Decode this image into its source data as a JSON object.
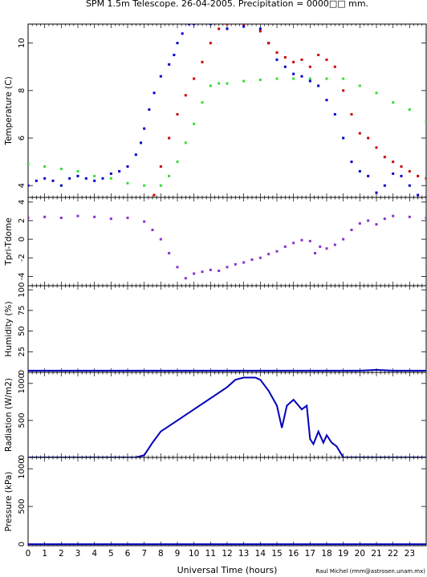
{
  "title": "SPM 1.5m Telescope. 26-04-2005. Precipitation = 0000□□ mm.",
  "credit": "Raul Michel (rmm@astrosen.unam.mx)",
  "xlabel": "Universal Time (hours)",
  "x_ticks": [
    0,
    1,
    2,
    3,
    4,
    5,
    6,
    7,
    8,
    9,
    10,
    11,
    12,
    13,
    14,
    15,
    16,
    17,
    18,
    19,
    20,
    21,
    22,
    23
  ],
  "chart_data": [
    {
      "type": "scatter",
      "ylabel": "Temperature (C)",
      "xlim": [
        0,
        24
      ],
      "ylim": [
        3.5,
        10.8
      ],
      "y_ticks": [
        4,
        6,
        8,
        10
      ],
      "series": [
        {
          "color": "#0000cc",
          "points": [
            [
              0,
              4.0
            ],
            [
              0.5,
              4.2
            ],
            [
              1,
              4.3
            ],
            [
              1.5,
              4.2
            ],
            [
              2,
              4.0
            ],
            [
              2.5,
              4.3
            ],
            [
              3,
              4.4
            ],
            [
              3.5,
              4.3
            ],
            [
              4,
              4.2
            ],
            [
              4.5,
              4.3
            ],
            [
              5,
              4.5
            ],
            [
              5.5,
              4.6
            ],
            [
              6,
              4.8
            ],
            [
              6.5,
              5.3
            ],
            [
              6.8,
              5.8
            ],
            [
              7.0,
              6.4
            ],
            [
              7.3,
              7.2
            ],
            [
              7.6,
              7.9
            ],
            [
              8.0,
              8.6
            ],
            [
              8.5,
              9.1
            ],
            [
              8.8,
              9.5
            ],
            [
              9.0,
              10.0
            ],
            [
              9.3,
              10.4
            ],
            [
              9.7,
              10.8
            ],
            [
              10,
              10.8
            ],
            [
              11,
              10.8
            ],
            [
              12,
              10.6
            ],
            [
              13,
              10.7
            ],
            [
              14,
              10.6
            ],
            [
              14.5,
              10.0
            ],
            [
              15,
              9.3
            ],
            [
              15.5,
              9.0
            ],
            [
              16,
              8.7
            ],
            [
              16.5,
              8.6
            ],
            [
              17,
              8.4
            ],
            [
              17.5,
              8.2
            ],
            [
              18,
              7.6
            ],
            [
              18.5,
              7.0
            ],
            [
              19,
              6.0
            ],
            [
              19.5,
              5.0
            ],
            [
              20,
              4.6
            ],
            [
              20.5,
              4.4
            ],
            [
              21,
              3.7
            ],
            [
              21.5,
              4.0
            ],
            [
              22,
              4.5
            ],
            [
              22.5,
              4.4
            ],
            [
              23,
              4.0
            ],
            [
              23.5,
              3.6
            ],
            [
              24,
              3.5
            ]
          ]
        },
        {
          "color": "#cc0000",
          "points": [
            [
              7.6,
              3.6
            ],
            [
              8.0,
              4.8
            ],
            [
              8.5,
              6.0
            ],
            [
              9,
              7.0
            ],
            [
              9.5,
              7.8
            ],
            [
              10,
              8.5
            ],
            [
              10.5,
              9.2
            ],
            [
              11,
              10.0
            ],
            [
              11.5,
              10.6
            ],
            [
              12,
              10.8
            ],
            [
              13,
              10.8
            ],
            [
              14,
              10.5
            ],
            [
              14.5,
              10.0
            ],
            [
              15,
              9.6
            ],
            [
              15.5,
              9.4
            ],
            [
              16,
              9.2
            ],
            [
              16.5,
              9.3
            ],
            [
              17,
              9.0
            ],
            [
              17.5,
              9.5
            ],
            [
              18,
              9.3
            ],
            [
              18.5,
              9.0
            ],
            [
              19,
              8.0
            ],
            [
              19.5,
              7.0
            ],
            [
              20,
              6.2
            ],
            [
              20.5,
              6.0
            ],
            [
              21,
              5.6
            ],
            [
              21.5,
              5.2
            ],
            [
              22,
              5.0
            ],
            [
              22.5,
              4.8
            ],
            [
              23,
              4.6
            ],
            [
              23.5,
              4.4
            ],
            [
              24,
              4.3
            ]
          ]
        },
        {
          "color": "#33dd33",
          "points": [
            [
              0,
              4.9
            ],
            [
              1,
              4.8
            ],
            [
              2,
              4.7
            ],
            [
              3,
              4.6
            ],
            [
              4,
              4.4
            ],
            [
              5,
              4.3
            ],
            [
              6,
              4.1
            ],
            [
              7,
              4.0
            ],
            [
              8,
              4.0
            ],
            [
              8.5,
              4.4
            ],
            [
              9,
              5.0
            ],
            [
              9.5,
              5.8
            ],
            [
              10,
              6.6
            ],
            [
              10.5,
              7.5
            ],
            [
              11,
              8.2
            ],
            [
              11.5,
              8.3
            ],
            [
              12,
              8.3
            ],
            [
              13,
              8.4
            ],
            [
              14,
              8.45
            ],
            [
              15,
              8.5
            ],
            [
              16,
              8.5
            ],
            [
              17,
              8.5
            ],
            [
              18,
              8.5
            ],
            [
              19,
              8.5
            ],
            [
              20,
              8.2
            ],
            [
              21,
              7.9
            ],
            [
              22,
              7.5
            ],
            [
              23,
              7.2
            ],
            [
              24,
              6.7
            ]
          ]
        }
      ]
    },
    {
      "type": "scatter",
      "ylabel": "Tpri-Tdome",
      "xlim": [
        0,
        24
      ],
      "ylim": [
        -5,
        4.5
      ],
      "y_ticks": [
        -4,
        -2,
        0,
        2,
        4
      ],
      "series": [
        {
          "color": "#8833cc",
          "points": [
            [
              0,
              2.3
            ],
            [
              1,
              2.4
            ],
            [
              2,
              2.3
            ],
            [
              3,
              2.5
            ],
            [
              4,
              2.4
            ],
            [
              5,
              2.2
            ],
            [
              6,
              2.3
            ],
            [
              7,
              1.9
            ],
            [
              7.5,
              1.0
            ],
            [
              8,
              0.0
            ],
            [
              8.5,
              -1.5
            ],
            [
              9,
              -3.0
            ],
            [
              9.5,
              -4.2
            ],
            [
              10,
              -3.7
            ],
            [
              10.5,
              -3.5
            ],
            [
              11,
              -3.3
            ],
            [
              11.5,
              -3.4
            ],
            [
              12,
              -3.0
            ],
            [
              12.5,
              -2.7
            ],
            [
              13,
              -2.5
            ],
            [
              13.5,
              -2.2
            ],
            [
              14,
              -2.0
            ],
            [
              14.5,
              -1.6
            ],
            [
              15,
              -1.3
            ],
            [
              15.5,
              -0.8
            ],
            [
              16,
              -0.4
            ],
            [
              16.5,
              -0.1
            ],
            [
              17,
              -0.2
            ],
            [
              17.3,
              -1.5
            ],
            [
              17.6,
              -0.8
            ],
            [
              18,
              -1.0
            ],
            [
              18.5,
              -0.6
            ],
            [
              19,
              0.0
            ],
            [
              19.5,
              1.0
            ],
            [
              20,
              1.7
            ],
            [
              20.5,
              2.0
            ],
            [
              21,
              1.6
            ],
            [
              21.5,
              2.2
            ],
            [
              22,
              2.5
            ],
            [
              23,
              2.4
            ],
            [
              24,
              2.3
            ]
          ]
        }
      ]
    },
    {
      "type": "line",
      "ylabel": "Humidity (%)",
      "xlim": [
        0,
        24
      ],
      "ylim": [
        0,
        105
      ],
      "y_ticks": [
        0,
        25,
        50,
        75,
        100
      ],
      "series": [
        {
          "color": "#0000bb",
          "points": [
            [
              0,
              2
            ],
            [
              6,
              2
            ],
            [
              10,
              2
            ],
            [
              14,
              2
            ],
            [
              18,
              2
            ],
            [
              20,
              2
            ],
            [
              21,
              3
            ],
            [
              22,
              2
            ],
            [
              24,
              2
            ]
          ]
        }
      ]
    },
    {
      "type": "line",
      "ylabel": "Radiation (W/m2)",
      "xlim": [
        0,
        24
      ],
      "ylim": [
        0,
        1150
      ],
      "y_ticks": [
        0,
        500,
        1000
      ],
      "series": [
        {
          "color": "#0000bb",
          "points": [
            [
              0,
              0
            ],
            [
              6.5,
              0
            ],
            [
              7,
              30
            ],
            [
              7.5,
              200
            ],
            [
              8,
              350
            ],
            [
              9,
              500
            ],
            [
              10,
              650
            ],
            [
              11,
              800
            ],
            [
              12,
              950
            ],
            [
              12.5,
              1050
            ],
            [
              13,
              1080
            ],
            [
              13.7,
              1080
            ],
            [
              14,
              1050
            ],
            [
              14.5,
              900
            ],
            [
              15,
              700
            ],
            [
              15.3,
              400
            ],
            [
              15.6,
              700
            ],
            [
              16,
              780
            ],
            [
              16.5,
              650
            ],
            [
              16.8,
              700
            ],
            [
              17.0,
              250
            ],
            [
              17.2,
              180
            ],
            [
              17.5,
              350
            ],
            [
              17.8,
              200
            ],
            [
              18,
              300
            ],
            [
              18.3,
              200
            ],
            [
              18.6,
              150
            ],
            [
              19,
              0
            ],
            [
              24,
              0
            ]
          ]
        }
      ]
    },
    {
      "type": "line",
      "ylabel": "Pressure (kPa)",
      "xlim": [
        0,
        24
      ],
      "ylim": [
        -20,
        1150
      ],
      "y_ticks": [
        0,
        500,
        1000
      ],
      "series": [
        {
          "color": "#0000bb",
          "points": [
            [
              0,
              0
            ],
            [
              24,
              0
            ]
          ]
        }
      ]
    }
  ]
}
